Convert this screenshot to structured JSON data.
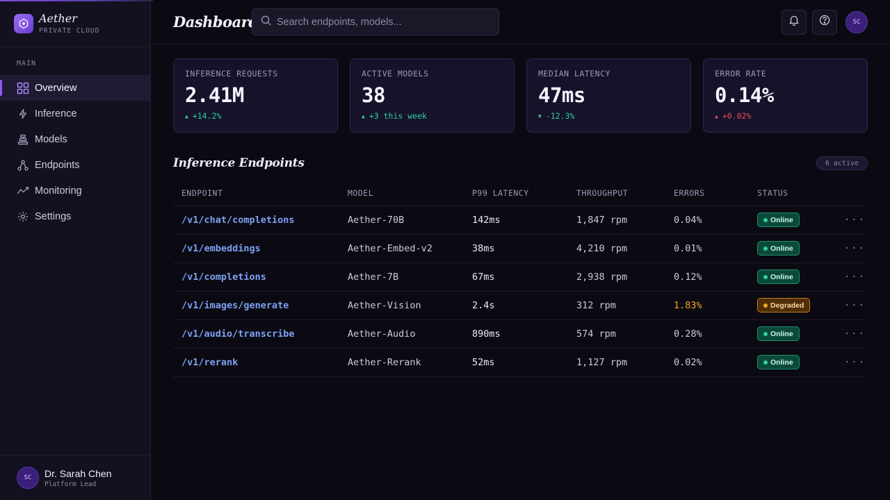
{
  "brand": {
    "name": "Aether",
    "subtitle": "PRIVATE CLOUD"
  },
  "sidebar": {
    "section": "MAIN",
    "items": [
      {
        "label": "Overview",
        "icon": "grid-icon",
        "active": true
      },
      {
        "label": "Inference",
        "icon": "bolt-icon"
      },
      {
        "label": "Models",
        "icon": "layers-icon"
      },
      {
        "label": "Endpoints",
        "icon": "nodes-icon"
      },
      {
        "label": "Monitoring",
        "icon": "activity-icon"
      },
      {
        "label": "Settings",
        "icon": "gear-icon"
      }
    ]
  },
  "user": {
    "initials": "SC",
    "name": "Dr. Sarah Chen",
    "role": "Platform Lead"
  },
  "header": {
    "title": "Dashboard",
    "search_placeholder": "Search endpoints, models...",
    "avatar_initials": "SC"
  },
  "stats": [
    {
      "label": "INFERENCE REQUESTS",
      "value": "2.41M",
      "delta": "+14.2%",
      "direction": "up",
      "tone": "good"
    },
    {
      "label": "ACTIVE MODELS",
      "value": "38",
      "delta": "+3 this week",
      "direction": "up",
      "tone": "good"
    },
    {
      "label": "MEDIAN LATENCY",
      "value": "47ms",
      "delta": "-12.3%",
      "direction": "down",
      "tone": "good"
    },
    {
      "label": "ERROR RATE",
      "value": "0.14%",
      "delta": "+0.02%",
      "direction": "up",
      "tone": "bad"
    }
  ],
  "endpoints": {
    "title": "Inference Endpoints",
    "badge": "6 active",
    "columns": [
      "ENDPOINT",
      "MODEL",
      "P99 LATENCY",
      "THROUGHPUT",
      "ERRORS",
      "STATUS"
    ],
    "rows": [
      {
        "endpoint": "/v1/chat/completions",
        "model": "Aether-70B",
        "latency": "142ms",
        "throughput": "1,847 rpm",
        "errors": "0.04%",
        "status": "Online"
      },
      {
        "endpoint": "/v1/embeddings",
        "model": "Aether-Embed-v2",
        "latency": "38ms",
        "throughput": "4,210 rpm",
        "errors": "0.01%",
        "status": "Online"
      },
      {
        "endpoint": "/v1/completions",
        "model": "Aether-7B",
        "latency": "67ms",
        "throughput": "2,938 rpm",
        "errors": "0.12%",
        "status": "Online"
      },
      {
        "endpoint": "/v1/images/generate",
        "model": "Aether-Vision",
        "latency": "2.4s",
        "throughput": "312 rpm",
        "errors": "1.83%",
        "status": "Degraded"
      },
      {
        "endpoint": "/v1/audio/transcribe",
        "model": "Aether-Audio",
        "latency": "890ms",
        "throughput": "574 rpm",
        "errors": "0.28%",
        "status": "Online"
      },
      {
        "endpoint": "/v1/rerank",
        "model": "Aether-Rerank",
        "latency": "52ms",
        "throughput": "1,127 rpm",
        "errors": "0.02%",
        "status": "Online"
      }
    ],
    "more_label": "···"
  },
  "colors": {
    "accent": "#8b5cf6",
    "good": "#2fd1a0",
    "bad": "#f04a5e",
    "warn": "#f5a524",
    "link": "#7ea1f5"
  }
}
